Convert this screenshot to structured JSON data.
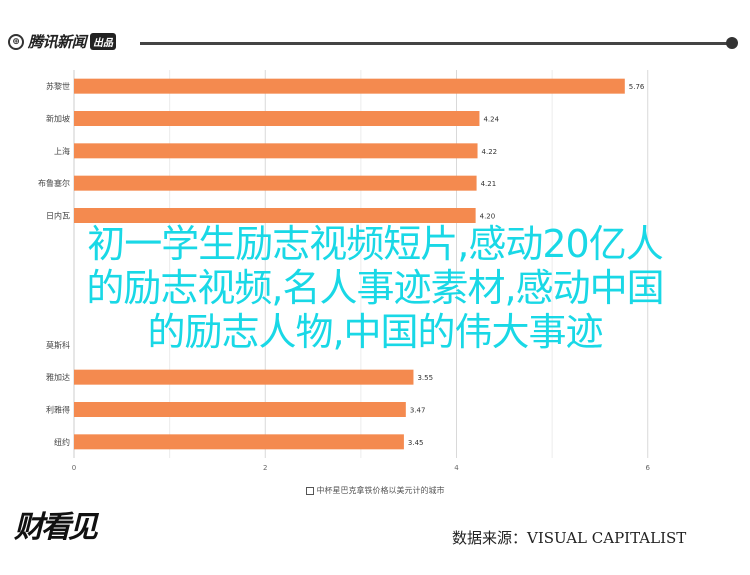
{
  "header": {
    "logo_icon": "fork-circle-icon",
    "logo_name": "腾讯新闻",
    "logo_tag": "出品"
  },
  "overlay": {
    "line1": "初一学生励志视频短片,感动20亿人",
    "line2": "的励志视频,名人事迹素材,感动中国",
    "line3": "的励志人物,中国的伟大事迹"
  },
  "footer": {
    "brand": "财看见",
    "source": "数据来源：VISUAL CAPITALIST"
  },
  "chart_data": {
    "type": "bar",
    "orientation": "horizontal",
    "bar_color": "#f48a4f",
    "categories": [
      "苏黎世",
      "新加坡",
      "上海",
      "布鲁塞尔",
      "日内瓦",
      "",
      "",
      "",
      "莫斯科",
      "雅加达",
      "利雅得",
      "纽约"
    ],
    "values": [
      5.76,
      4.24,
      4.22,
      4.21,
      4.2,
      null,
      null,
      null,
      null,
      3.55,
      3.47,
      3.45
    ],
    "value_labels": [
      "5.76",
      "4.24",
      "4.22",
      "4.21",
      "4.20",
      "",
      "",
      "",
      "",
      "3.55",
      "3.47",
      "3.45"
    ],
    "xlim": [
      0,
      6.4
    ],
    "xticks": [
      "0",
      "2",
      "4",
      "6"
    ],
    "xlabel": "中杯星巴克拿铁价格以美元计的城市",
    "grid": true
  }
}
